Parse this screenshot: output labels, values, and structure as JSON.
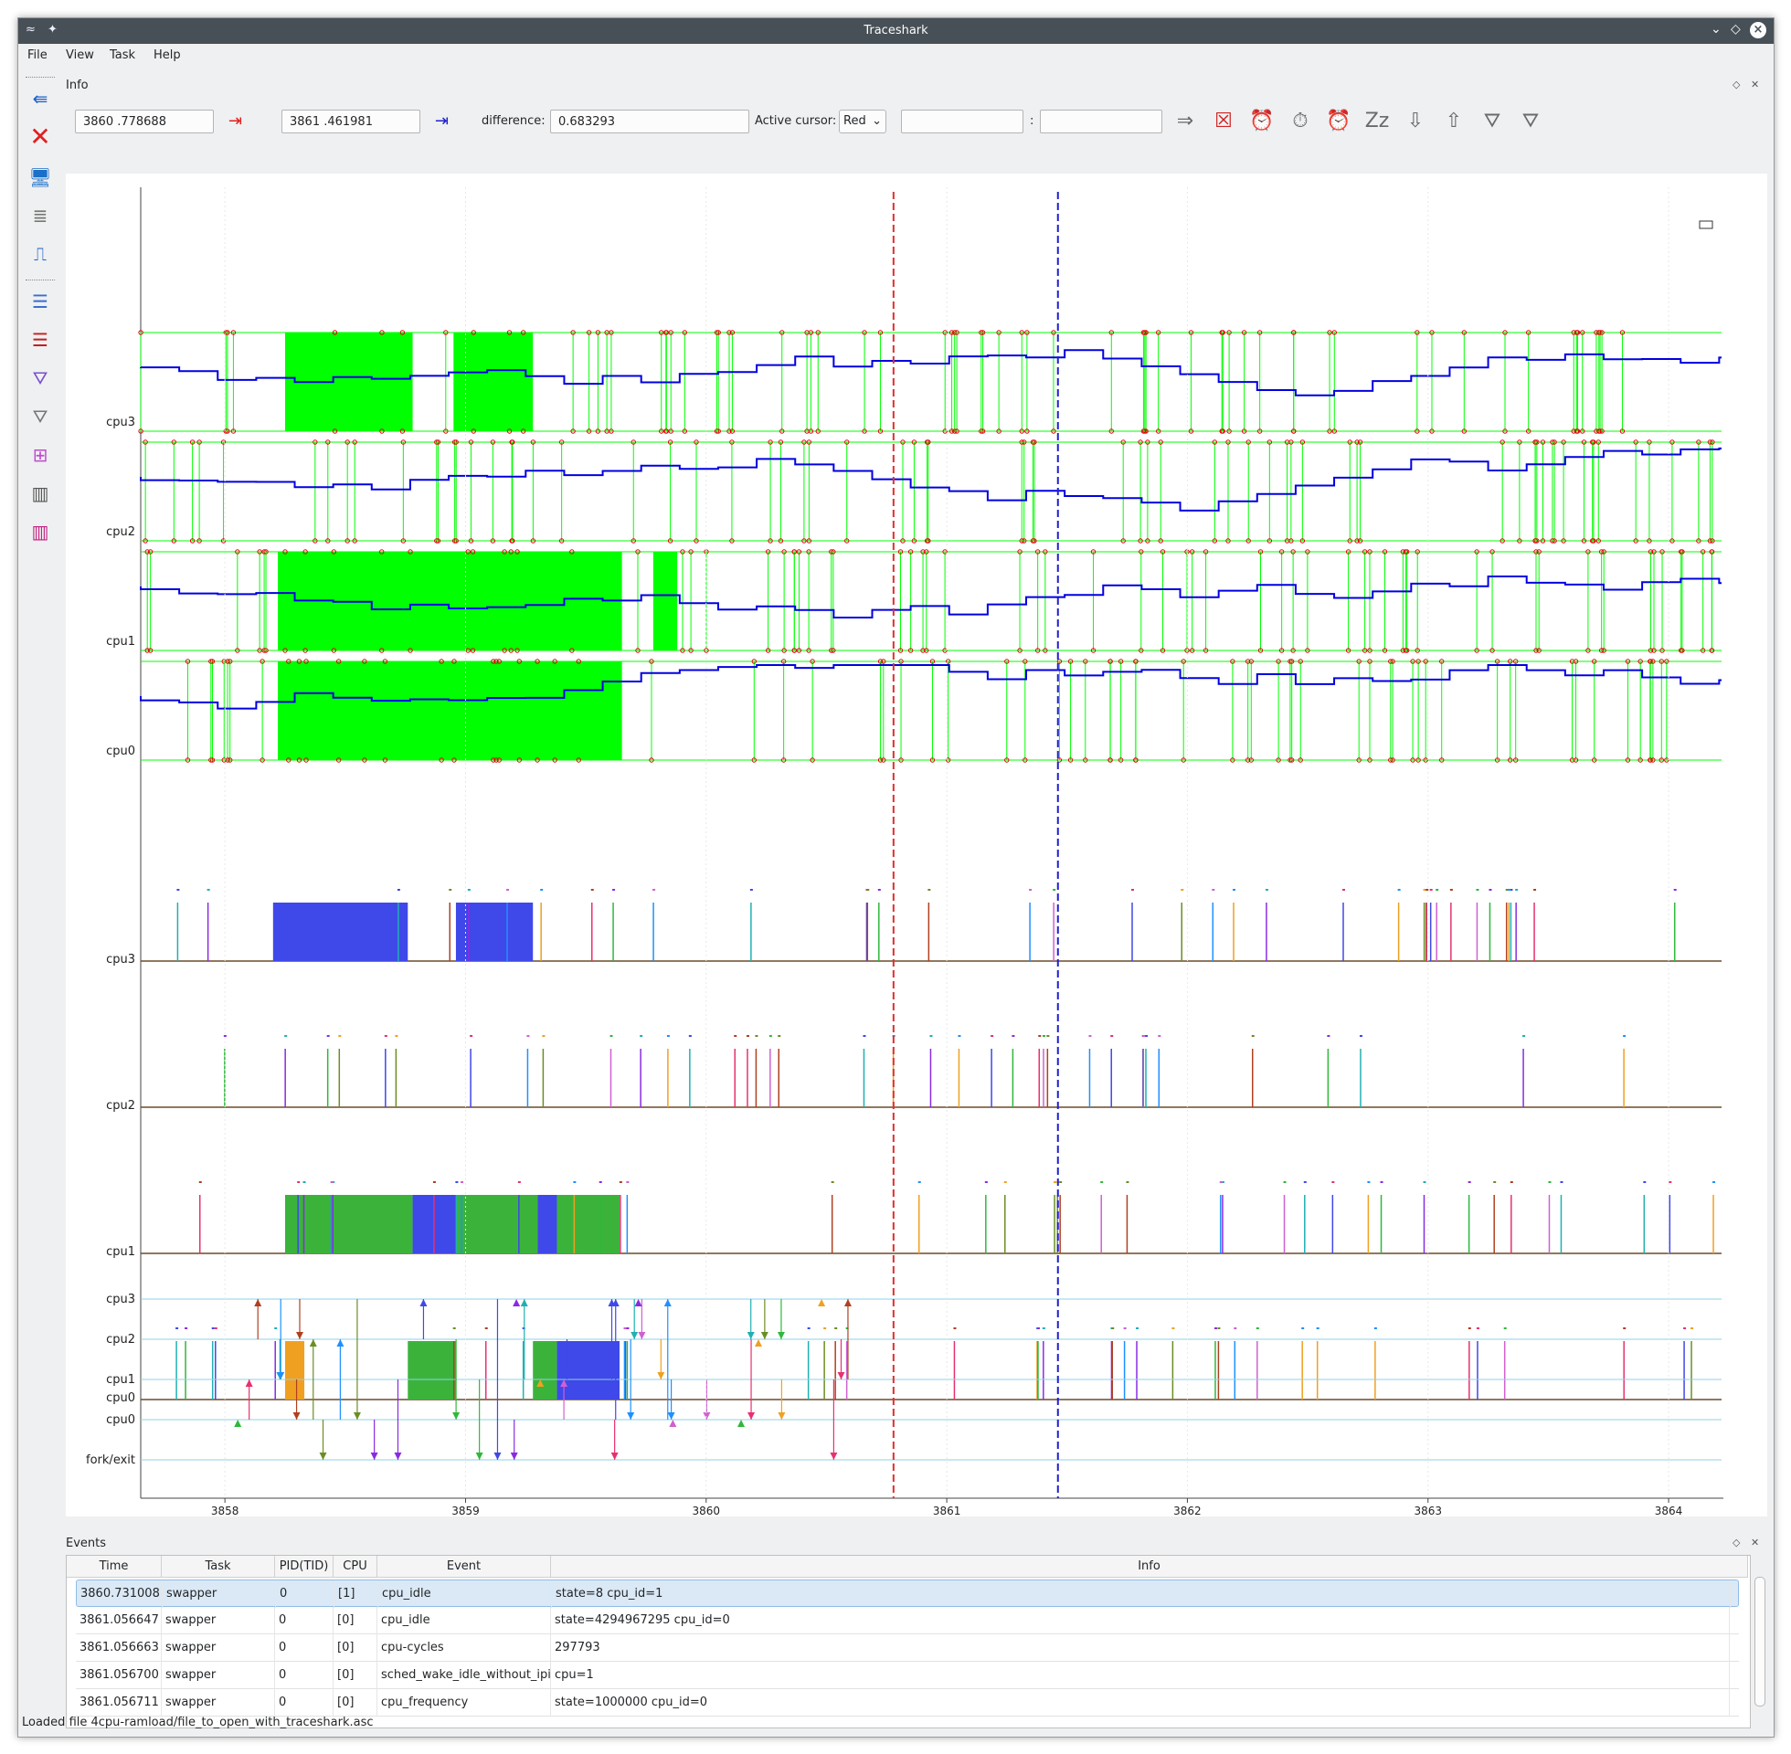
{
  "window": {
    "title": "Traceshark"
  },
  "menu": {
    "file": "File",
    "view": "View",
    "task": "Task",
    "help": "Help"
  },
  "info": {
    "title": "Info",
    "cursor1_value": "3860  .778688",
    "cursor2_value": "3861  .461981",
    "difference_label": "difference:",
    "difference_value": "0.683293",
    "active_cursor_label": "Active cursor:",
    "active_cursor_value": "Red",
    "task_field_1": "",
    "separator": ":",
    "task_field_2": ""
  },
  "plot": {
    "colors": {
      "cursor_red": "#e03030",
      "cursor_blue": "#2020d0",
      "idle_green": "#00ff00",
      "freq_blue": "#0000e0"
    },
    "idle_freq_labels": [
      "cpu3",
      "cpu2",
      "cpu1",
      "cpu0"
    ],
    "sched_labels": [
      "cpu3",
      "cpu2",
      "cpu1",
      "cpu0"
    ],
    "migration_labels": [
      "cpu3",
      "cpu2",
      "cpu1",
      "cpu0",
      "fork/exit"
    ],
    "x_ticks": [
      "3858",
      "3859",
      "3860",
      "3861",
      "3862",
      "3863",
      "3864"
    ],
    "red_cursor_time": 3860.778688,
    "blue_cursor_time": 3861.461981
  },
  "events": {
    "title": "Events",
    "columns": [
      "Time",
      "Task",
      "PID(TID)",
      "CPU",
      "Event",
      "Info"
    ],
    "rows": [
      [
        "3860.731008",
        "swapper",
        "0",
        "[1]",
        "cpu_idle",
        "state=8 cpu_id=1"
      ],
      [
        "3861.056647",
        "swapper",
        "0",
        "[0]",
        "cpu_idle",
        "state=4294967295 cpu_id=0"
      ],
      [
        "3861.056663",
        "swapper",
        "0",
        "[0]",
        "cpu-cycles",
        "297793"
      ],
      [
        "3861.056700",
        "swapper",
        "0",
        "[0]",
        "sched_wake_idle_without_ipi",
        "cpu=1"
      ],
      [
        "3861.056711",
        "swapper",
        "0",
        "[0]",
        "cpu_frequency",
        "state=1000000 cpu_id=0"
      ]
    ]
  },
  "status": {
    "text": "Loaded file 4cpu-ramload/file_to_open_with_traceshark.asc"
  }
}
